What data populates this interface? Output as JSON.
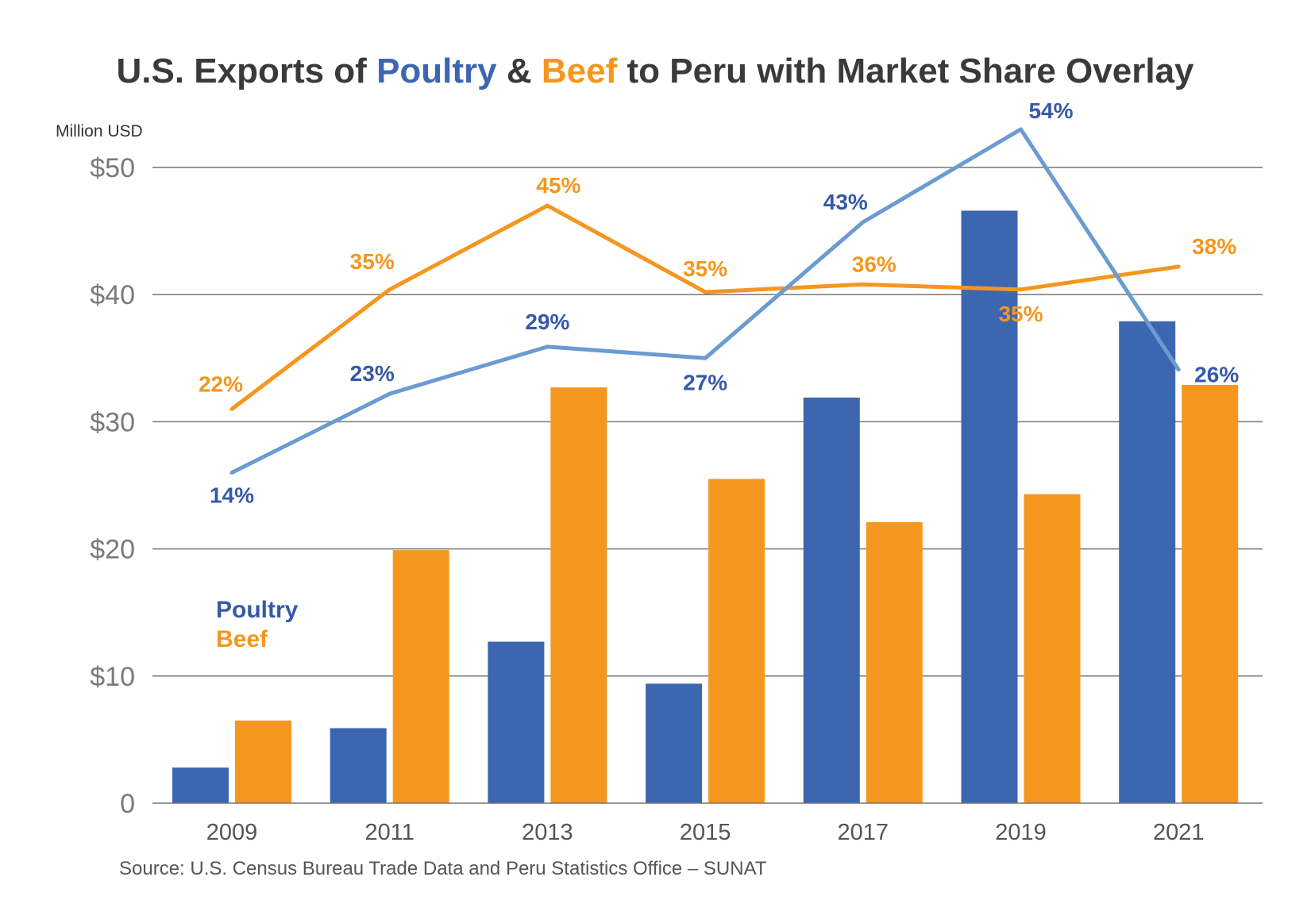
{
  "chart_data": {
    "type": "bar",
    "title": {
      "part1": "U.S. Exports of ",
      "poultry": "Poultry",
      "part2": " & ",
      "beef": "Beef",
      "part3": " to Peru with Market Share Overlay"
    },
    "ylabel": "Million USD",
    "ylim": [
      0,
      50
    ],
    "y_ticks": [
      {
        "value": 0,
        "label": "0"
      },
      {
        "value": 10,
        "label": "$10"
      },
      {
        "value": 20,
        "label": "$20"
      },
      {
        "value": 30,
        "label": "$30"
      },
      {
        "value": 40,
        "label": "$40"
      },
      {
        "value": 50,
        "label": "$50"
      }
    ],
    "categories": [
      "2009",
      "2011",
      "2013",
      "2015",
      "2017",
      "2019",
      "2021"
    ],
    "series": [
      {
        "name": "Poultry",
        "values": [
          2.8,
          5.9,
          12.7,
          9.4,
          31.9,
          46.6,
          37.9
        ]
      },
      {
        "name": "Beef",
        "values": [
          6.5,
          19.9,
          32.7,
          25.5,
          22.1,
          24.3,
          32.9
        ]
      }
    ],
    "market_share": {
      "poultry_labels": [
        "14%",
        "23%",
        "29%",
        "27%",
        "43%",
        "54%",
        "26%"
      ],
      "poultry_line_y": [
        26.0,
        32.2,
        35.9,
        35.0,
        45.7,
        53.0,
        34.1
      ],
      "beef_labels": [
        "22%",
        "35%",
        "45%",
        "35%",
        "36%",
        "35%",
        "38%"
      ],
      "beef_line_y": [
        31.0,
        40.4,
        47.0,
        40.2,
        40.8,
        40.4,
        42.2
      ]
    },
    "legend": [
      "Poultry",
      "Beef"
    ],
    "colors": {
      "poultry_bar": "#3d66b0",
      "beef_bar": "#f5961e",
      "poultry_line": "#6b9bd1",
      "beef_line": "#f5961e",
      "poultry_text": "#3659a8",
      "beef_text": "#f5961e",
      "grid": "#777777"
    },
    "source": "Source: U.S. Census Bureau Trade Data and Peru Statistics Office – SUNAT"
  }
}
